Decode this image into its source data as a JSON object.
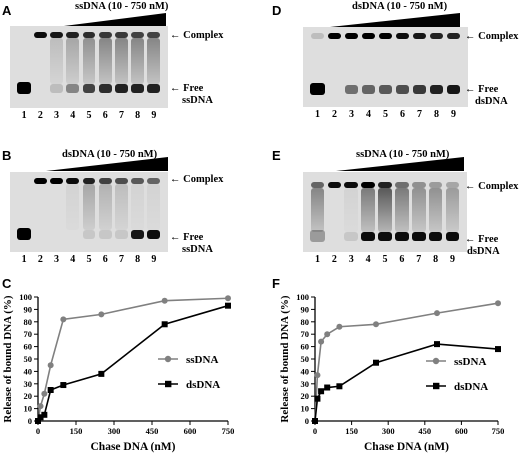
{
  "panels": {
    "A": {
      "letter": "A",
      "title": "ssDNA (10 - 750 nM)",
      "complex_label": "Complex",
      "free_label_1": "Free",
      "free_label_2": "ssDNA",
      "lanes": [
        "1",
        "2",
        "3",
        "4",
        "5",
        "6",
        "7",
        "8",
        "9"
      ]
    },
    "B": {
      "letter": "B",
      "title": "dsDNA (10 - 750 nM)",
      "complex_label": "Complex",
      "free_label_1": "Free",
      "free_label_2": "ssDNA",
      "lanes": [
        "1",
        "2",
        "3",
        "4",
        "5",
        "6",
        "7",
        "8",
        "9"
      ]
    },
    "D": {
      "letter": "D",
      "title": "dsDNA (10 - 750 nM)",
      "complex_label": "Complex",
      "free_label_1": "Free",
      "free_label_2": "dsDNA",
      "lanes": [
        "1",
        "2",
        "3",
        "4",
        "5",
        "6",
        "7",
        "8",
        "9"
      ]
    },
    "E": {
      "letter": "E",
      "title": "ssDNA (10 - 750 nM)",
      "complex_label": "Complex",
      "free_label_1": "Free",
      "free_label_2": "dsDNA",
      "lanes": [
        "1",
        "2",
        "3",
        "4",
        "5",
        "6",
        "7",
        "8",
        "9"
      ]
    },
    "C": {
      "letter": "C"
    },
    "F": {
      "letter": "F"
    }
  },
  "chart_data": [
    {
      "panel": "C",
      "type": "line",
      "xlabel": "Chase DNA (nM)",
      "ylabel": "Release of bound DNA (%)",
      "xlim": [
        0,
        750
      ],
      "ylim": [
        0,
        100
      ],
      "xticks": [
        0,
        150,
        300,
        450,
        600,
        750
      ],
      "yticks": [
        0,
        10,
        20,
        30,
        40,
        50,
        60,
        70,
        80,
        90,
        100
      ],
      "legend_position": "right",
      "series": [
        {
          "name": "ssDNA",
          "color": "#808080",
          "marker": "circle",
          "x": [
            0,
            10,
            25,
            50,
            100,
            250,
            500,
            750
          ],
          "y": [
            0,
            12,
            22,
            45,
            82,
            86,
            97,
            99
          ]
        },
        {
          "name": "dsDNA",
          "color": "#000000",
          "marker": "square",
          "x": [
            0,
            10,
            25,
            50,
            100,
            250,
            500,
            750
          ],
          "y": [
            0,
            3,
            5,
            25,
            29,
            38,
            78,
            93
          ]
        }
      ]
    },
    {
      "panel": "F",
      "type": "line",
      "xlabel": "Chase DNA (nM)",
      "ylabel": "Release of bound DNA (%)",
      "xlim": [
        0,
        750
      ],
      "ylim": [
        0,
        100
      ],
      "xticks": [
        0,
        150,
        300,
        450,
        600,
        750
      ],
      "yticks": [
        0,
        10,
        20,
        30,
        40,
        50,
        60,
        70,
        80,
        90,
        100
      ],
      "legend_position": "right",
      "series": [
        {
          "name": "ssDNA",
          "color": "#808080",
          "marker": "circle",
          "x": [
            0,
            10,
            25,
            50,
            100,
            250,
            500,
            750
          ],
          "y": [
            0,
            37,
            64,
            70,
            76,
            78,
            87,
            95
          ]
        },
        {
          "name": "dsDNA",
          "color": "#000000",
          "marker": "square",
          "x": [
            0,
            10,
            25,
            50,
            100,
            250,
            500,
            750
          ],
          "y": [
            0,
            18,
            24,
            27,
            28,
            47,
            62,
            58
          ]
        }
      ]
    }
  ]
}
